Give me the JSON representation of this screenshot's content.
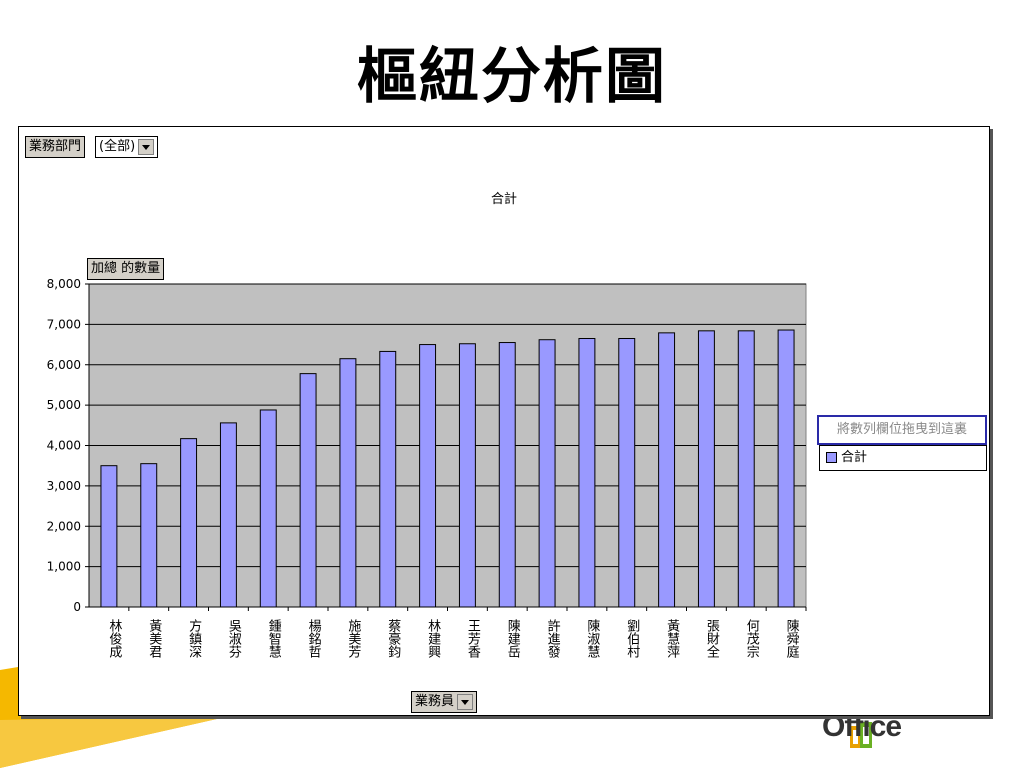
{
  "slide": {
    "title": "樞紐分析圖",
    "logo_text": "Office"
  },
  "pivot": {
    "page_field_label": "業務部門",
    "page_field_value": "(全部)",
    "data_field_label": "加總 的數量",
    "category_field_label": "業務員",
    "series_drop_hint": "將數列欄位拖曳到這裏"
  },
  "colors": {
    "bar": "#9999ff",
    "plot_bg": "#c0c0c0",
    "frame_bg": "#ffffff"
  },
  "chart_data": {
    "type": "bar",
    "title": "合計",
    "categories": [
      "林俊成",
      "黃美君",
      "方鎮深",
      "吳淑芬",
      "鍾智慧",
      "楊銘哲",
      "施美芳",
      "蔡豪鈞",
      "林建興",
      "王芳香",
      "陳建岳",
      "許進發",
      "陳淑慧",
      "劉伯村",
      "黃慧萍",
      "張財全",
      "何茂宗",
      "陳舜庭"
    ],
    "series": [
      {
        "name": "合計",
        "values": [
          3500,
          3550,
          4170,
          4560,
          4880,
          5780,
          6150,
          6330,
          6500,
          6520,
          6550,
          6620,
          6650,
          6650,
          6790,
          6840,
          6840,
          6860
        ]
      }
    ],
    "ylim": [
      0,
      8000
    ],
    "yticks": [
      0,
      1000,
      2000,
      3000,
      4000,
      5000,
      6000,
      7000,
      8000
    ],
    "ytick_labels": [
      "0",
      "1,000",
      "2,000",
      "3,000",
      "4,000",
      "5,000",
      "6,000",
      "7,000",
      "8,000"
    ],
    "grid": true,
    "legend": "right"
  }
}
